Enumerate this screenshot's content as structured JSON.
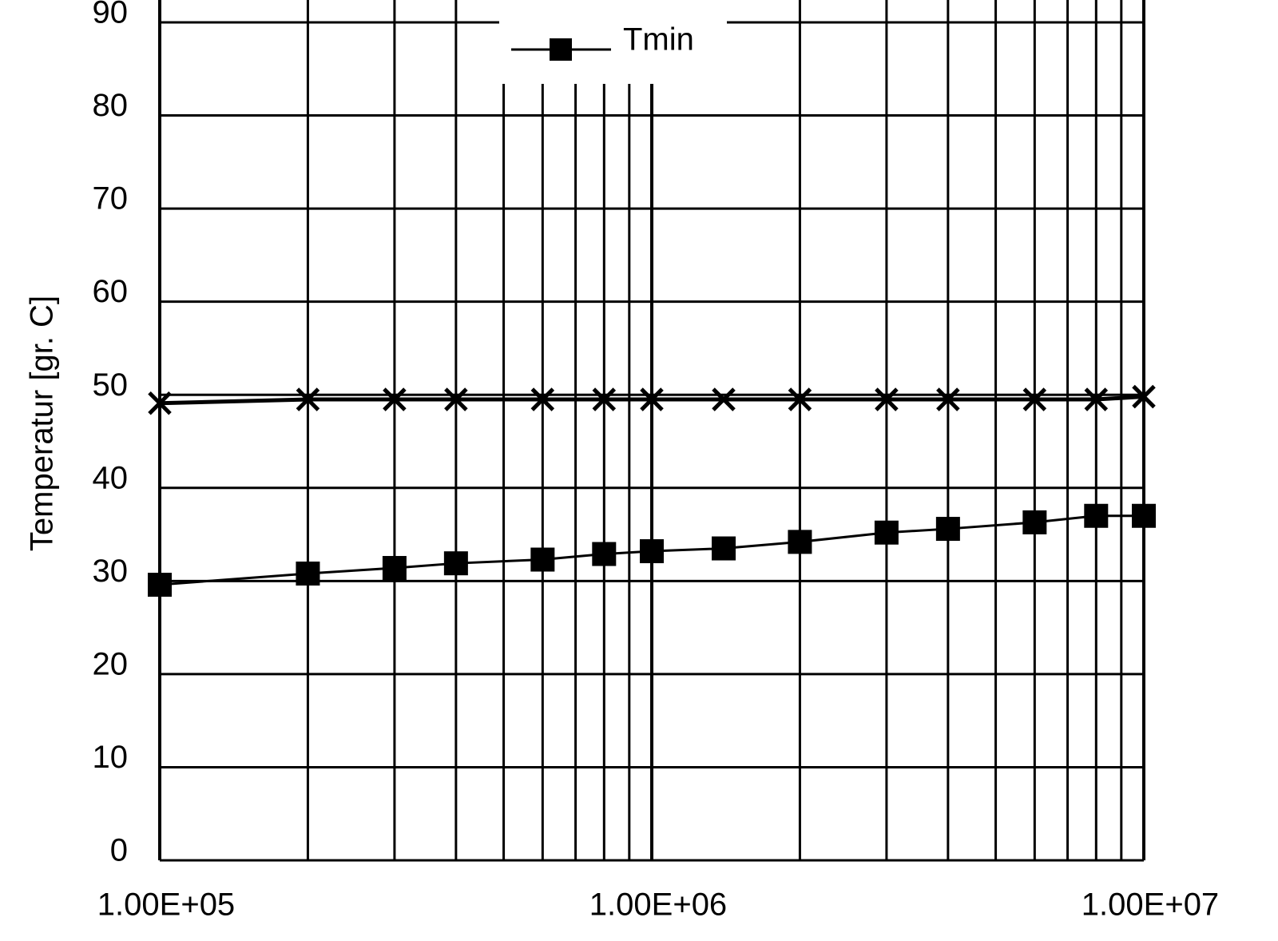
{
  "chart_data": {
    "type": "line",
    "y_label": "Temperatur [gr. C]",
    "x_scale": "log",
    "xlim": [
      100000,
      10000000
    ],
    "xticks": [
      {
        "value": 100000,
        "label": "1.00E+05"
      },
      {
        "value": 1000000,
        "label": "1.00E+06"
      },
      {
        "value": 10000000,
        "label": "1.00E+07"
      }
    ],
    "xminorticks": [
      200000,
      300000,
      400000,
      500000,
      600000,
      700000,
      800000,
      900000,
      2000000,
      3000000,
      4000000,
      5000000,
      6000000,
      7000000,
      8000000,
      9000000
    ],
    "ylim": [
      0,
      90
    ],
    "yticks": [
      0,
      10,
      20,
      30,
      40,
      50,
      60,
      70,
      80,
      90
    ],
    "grid": true,
    "legend": "top",
    "x": [
      100000,
      200000,
      300000,
      400000,
      600000,
      800000,
      1000000,
      1400000,
      2000000,
      3000000,
      4000000,
      6000000,
      8000000,
      10000000
    ],
    "series": [
      {
        "name": "Tmin",
        "color": "#000000",
        "marker": "square",
        "values": [
          29.6,
          30.8,
          31.4,
          31.9,
          32.3,
          32.9,
          33.2,
          33.5,
          34.2,
          35.2,
          35.6,
          36.3,
          37.0,
          37.0
        ]
      },
      {
        "color": "#000000",
        "marker": "x",
        "values": [
          49.1,
          49.5,
          49.5,
          49.5,
          49.5,
          49.5,
          49.5,
          49.5,
          49.5,
          49.5,
          49.5,
          49.5,
          49.5,
          49.8
        ]
      }
    ]
  }
}
